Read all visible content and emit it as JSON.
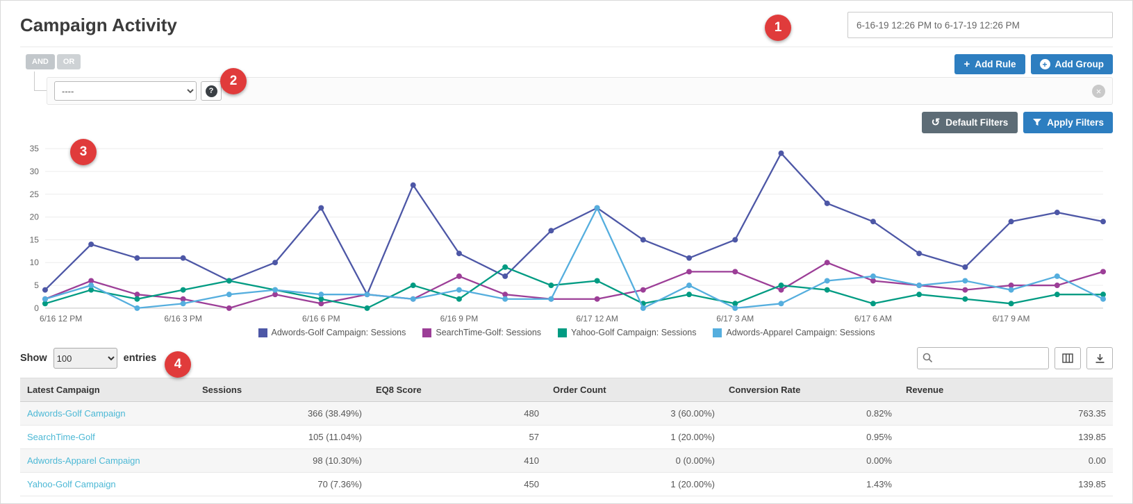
{
  "title": "Campaign Activity",
  "date_range": {
    "value": "6-16-19 12:26 PM to 6-17-19 12:26 PM"
  },
  "callouts": {
    "c1": "1",
    "c2": "2",
    "c3": "3",
    "c4": "4"
  },
  "filters": {
    "and_label": "AND",
    "or_label": "OR",
    "add_rule": "Add Rule",
    "add_group": "Add Group",
    "rule_select_value": "----",
    "help_glyph": "?",
    "remove_glyph": "×",
    "default_filters": "Default Filters",
    "apply_filters": "Apply Filters",
    "undo_glyph": "↺"
  },
  "chart_data": {
    "type": "line",
    "ylim": [
      0,
      35
    ],
    "y_ticks": [
      0,
      5,
      10,
      15,
      20,
      25,
      30,
      35
    ],
    "x_tick_positions": [
      0,
      3,
      6,
      9,
      12,
      15,
      18,
      21
    ],
    "x_tick_labels": [
      "6/16 12 PM",
      "6/16 3 PM",
      "6/16 6 PM",
      "6/16 9 PM",
      "6/17 12 AM",
      "6/17 3 AM",
      "6/17 6 AM",
      "6/17 9 AM"
    ],
    "grid": true,
    "legend_position": "bottom",
    "series": [
      {
        "name": "Adwords-Golf Campaign: Sessions",
        "color": "#4d57a6",
        "values": [
          4,
          14,
          11,
          11,
          6,
          10,
          22,
          3,
          27,
          12,
          7,
          17,
          22,
          15,
          11,
          15,
          34,
          23,
          19,
          12,
          9,
          19,
          21,
          19
        ]
      },
      {
        "name": "SearchTime-Golf: Sessions",
        "color": "#9c3e97",
        "values": [
          2,
          6,
          3,
          2,
          0,
          3,
          1,
          3,
          2,
          7,
          3,
          2,
          2,
          4,
          8,
          8,
          4,
          10,
          6,
          5,
          4,
          5,
          5,
          8
        ]
      },
      {
        "name": "Yahoo-Golf Campaign: Sessions",
        "color": "#009b82",
        "values": [
          1,
          4,
          2,
          4,
          6,
          4,
          2,
          0,
          5,
          2,
          9,
          5,
          6,
          1,
          3,
          1,
          5,
          4,
          1,
          3,
          2,
          1,
          3,
          3
        ]
      },
      {
        "name": "Adwords-Apparel Campaign: Sessions",
        "color": "#55aede",
        "values": [
          2,
          5,
          0,
          1,
          3,
          4,
          3,
          3,
          2,
          4,
          2,
          2,
          22,
          0,
          5,
          0,
          1,
          6,
          7,
          5,
          6,
          4,
          7,
          2
        ]
      }
    ]
  },
  "table_controls": {
    "show_label": "Show",
    "page_size": "100",
    "entries_label": "entries",
    "search_placeholder": ""
  },
  "table": {
    "columns": [
      "Latest Campaign",
      "Sessions",
      "EQ8 Score",
      "Order Count",
      "Conversion Rate",
      "Revenue"
    ],
    "rows": [
      [
        "Adwords-Golf Campaign",
        "366  (38.49%)",
        "480",
        "3  (60.00%)",
        "0.82%",
        "763.35"
      ],
      [
        "SearchTime-Golf",
        "105  (11.04%)",
        "57",
        "1  (20.00%)",
        "0.95%",
        "139.85"
      ],
      [
        "Adwords-Apparel Campaign",
        "98  (10.30%)",
        "410",
        "0  (0.00%)",
        "0.00%",
        "0.00"
      ],
      [
        "Yahoo-Golf Campaign",
        "70  (7.36%)",
        "450",
        "1  (20.00%)",
        "1.43%",
        "139.85"
      ]
    ]
  }
}
